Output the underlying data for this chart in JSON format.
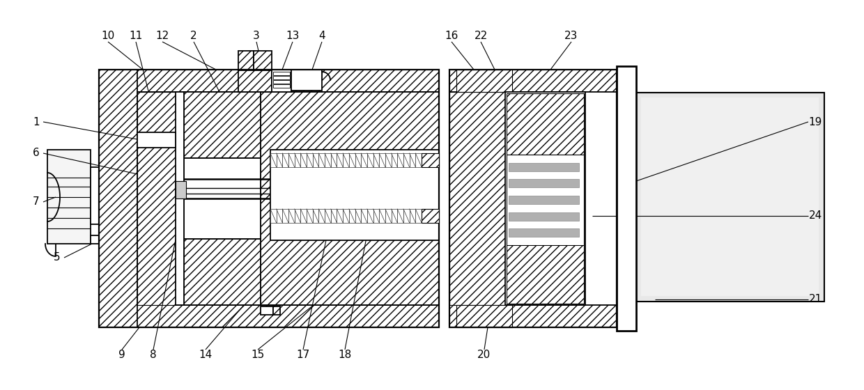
{
  "bg_color": "#ffffff",
  "fig_width": 12.4,
  "fig_height": 5.6,
  "lw_main": 1.3,
  "lw_thin": 0.8,
  "hatch_density": "///",
  "font_size": 11
}
